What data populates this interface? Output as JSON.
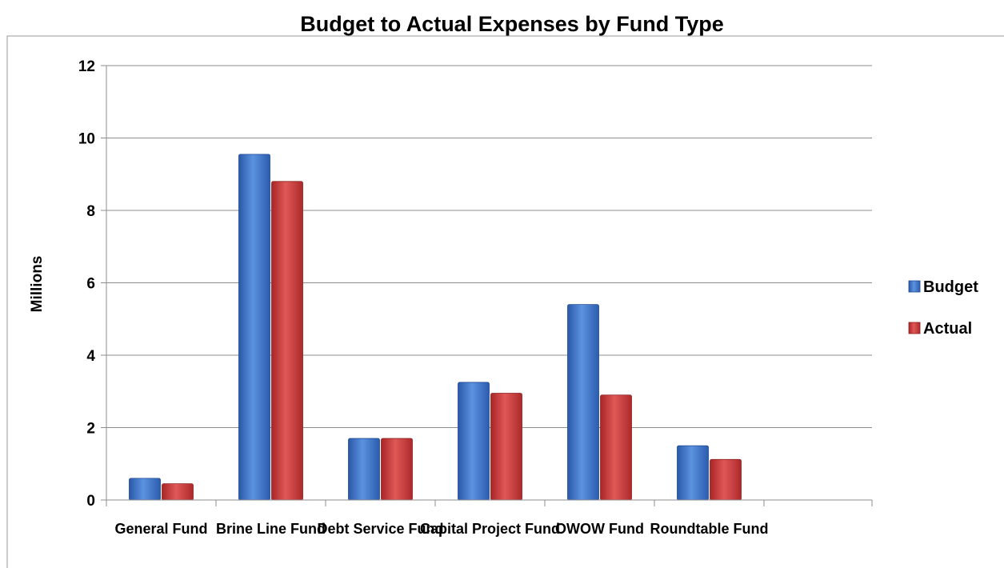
{
  "chart_data": {
    "type": "bar",
    "title": "Budget to Actual Expenses by Fund Type",
    "ylabel": "Millions",
    "xlabel": "",
    "ylim": [
      0,
      12
    ],
    "yticks": [
      0,
      2,
      4,
      6,
      8,
      10,
      12
    ],
    "grid": true,
    "legend_position": "right",
    "categories": [
      "General Fund",
      "Brine Line Fund",
      "Debt Service Fund",
      "Capital Project Fund",
      "OWOW Fund",
      "Roundtable Fund"
    ],
    "series": [
      {
        "name": "Budget",
        "color": "#3a6fc4",
        "values": [
          0.6,
          9.55,
          1.7,
          3.25,
          5.4,
          1.5
        ]
      },
      {
        "name": "Actual",
        "color": "#c43a3a",
        "values": [
          0.45,
          8.8,
          1.7,
          2.95,
          2.9,
          1.12
        ]
      }
    ]
  }
}
